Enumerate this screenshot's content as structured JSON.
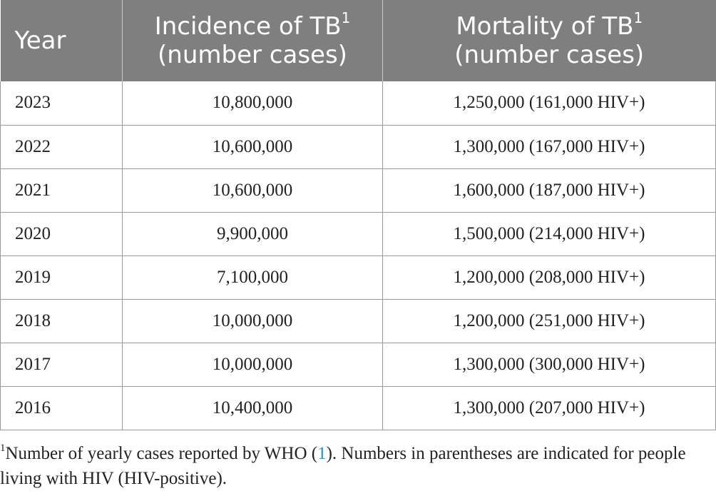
{
  "table": {
    "headers": [
      {
        "line1": "Year",
        "line2": "",
        "sup": ""
      },
      {
        "line1": "Incidence of TB",
        "line2": "(number cases)",
        "sup": "1"
      },
      {
        "line1": "Mortality of TB",
        "line2": "(number cases)",
        "sup": "1"
      }
    ],
    "rows": [
      {
        "year": "2023",
        "incidence": "10,800,000",
        "mortality": "1,250,000 (161,000 HIV+)"
      },
      {
        "year": "2022",
        "incidence": "10,600,000",
        "mortality": "1,300,000 (167,000 HIV+)"
      },
      {
        "year": "2021",
        "incidence": "10,600,000",
        "mortality": "1,600,000 (187,000 HIV+)"
      },
      {
        "year": "2020",
        "incidence": "9,900,000",
        "mortality": "1,500,000 (214,000 HIV+)"
      },
      {
        "year": "2019",
        "incidence": "7,100,000",
        "mortality": "1,200,000 (208,000 HIV+)"
      },
      {
        "year": "2018",
        "incidence": "10,000,000",
        "mortality": "1,200,000 (251,000 HIV+)"
      },
      {
        "year": "2017",
        "incidence": "10,000,000",
        "mortality": "1,300,000 (300,000 HIV+)"
      },
      {
        "year": "2016",
        "incidence": "10,400,000",
        "mortality": "1,300,000 (207,000 HIV+)"
      }
    ]
  },
  "footnote": {
    "marker": "1",
    "text_before": "Number of yearly cases reported by WHO (",
    "ref": "1",
    "text_after": "). Numbers in parentheses are indicated for people living with HIV (HIV-positive)."
  },
  "colors": {
    "header_bg": "#7f7f7f",
    "header_text": "#ffffff",
    "ref_link": "#2a8fc6"
  }
}
